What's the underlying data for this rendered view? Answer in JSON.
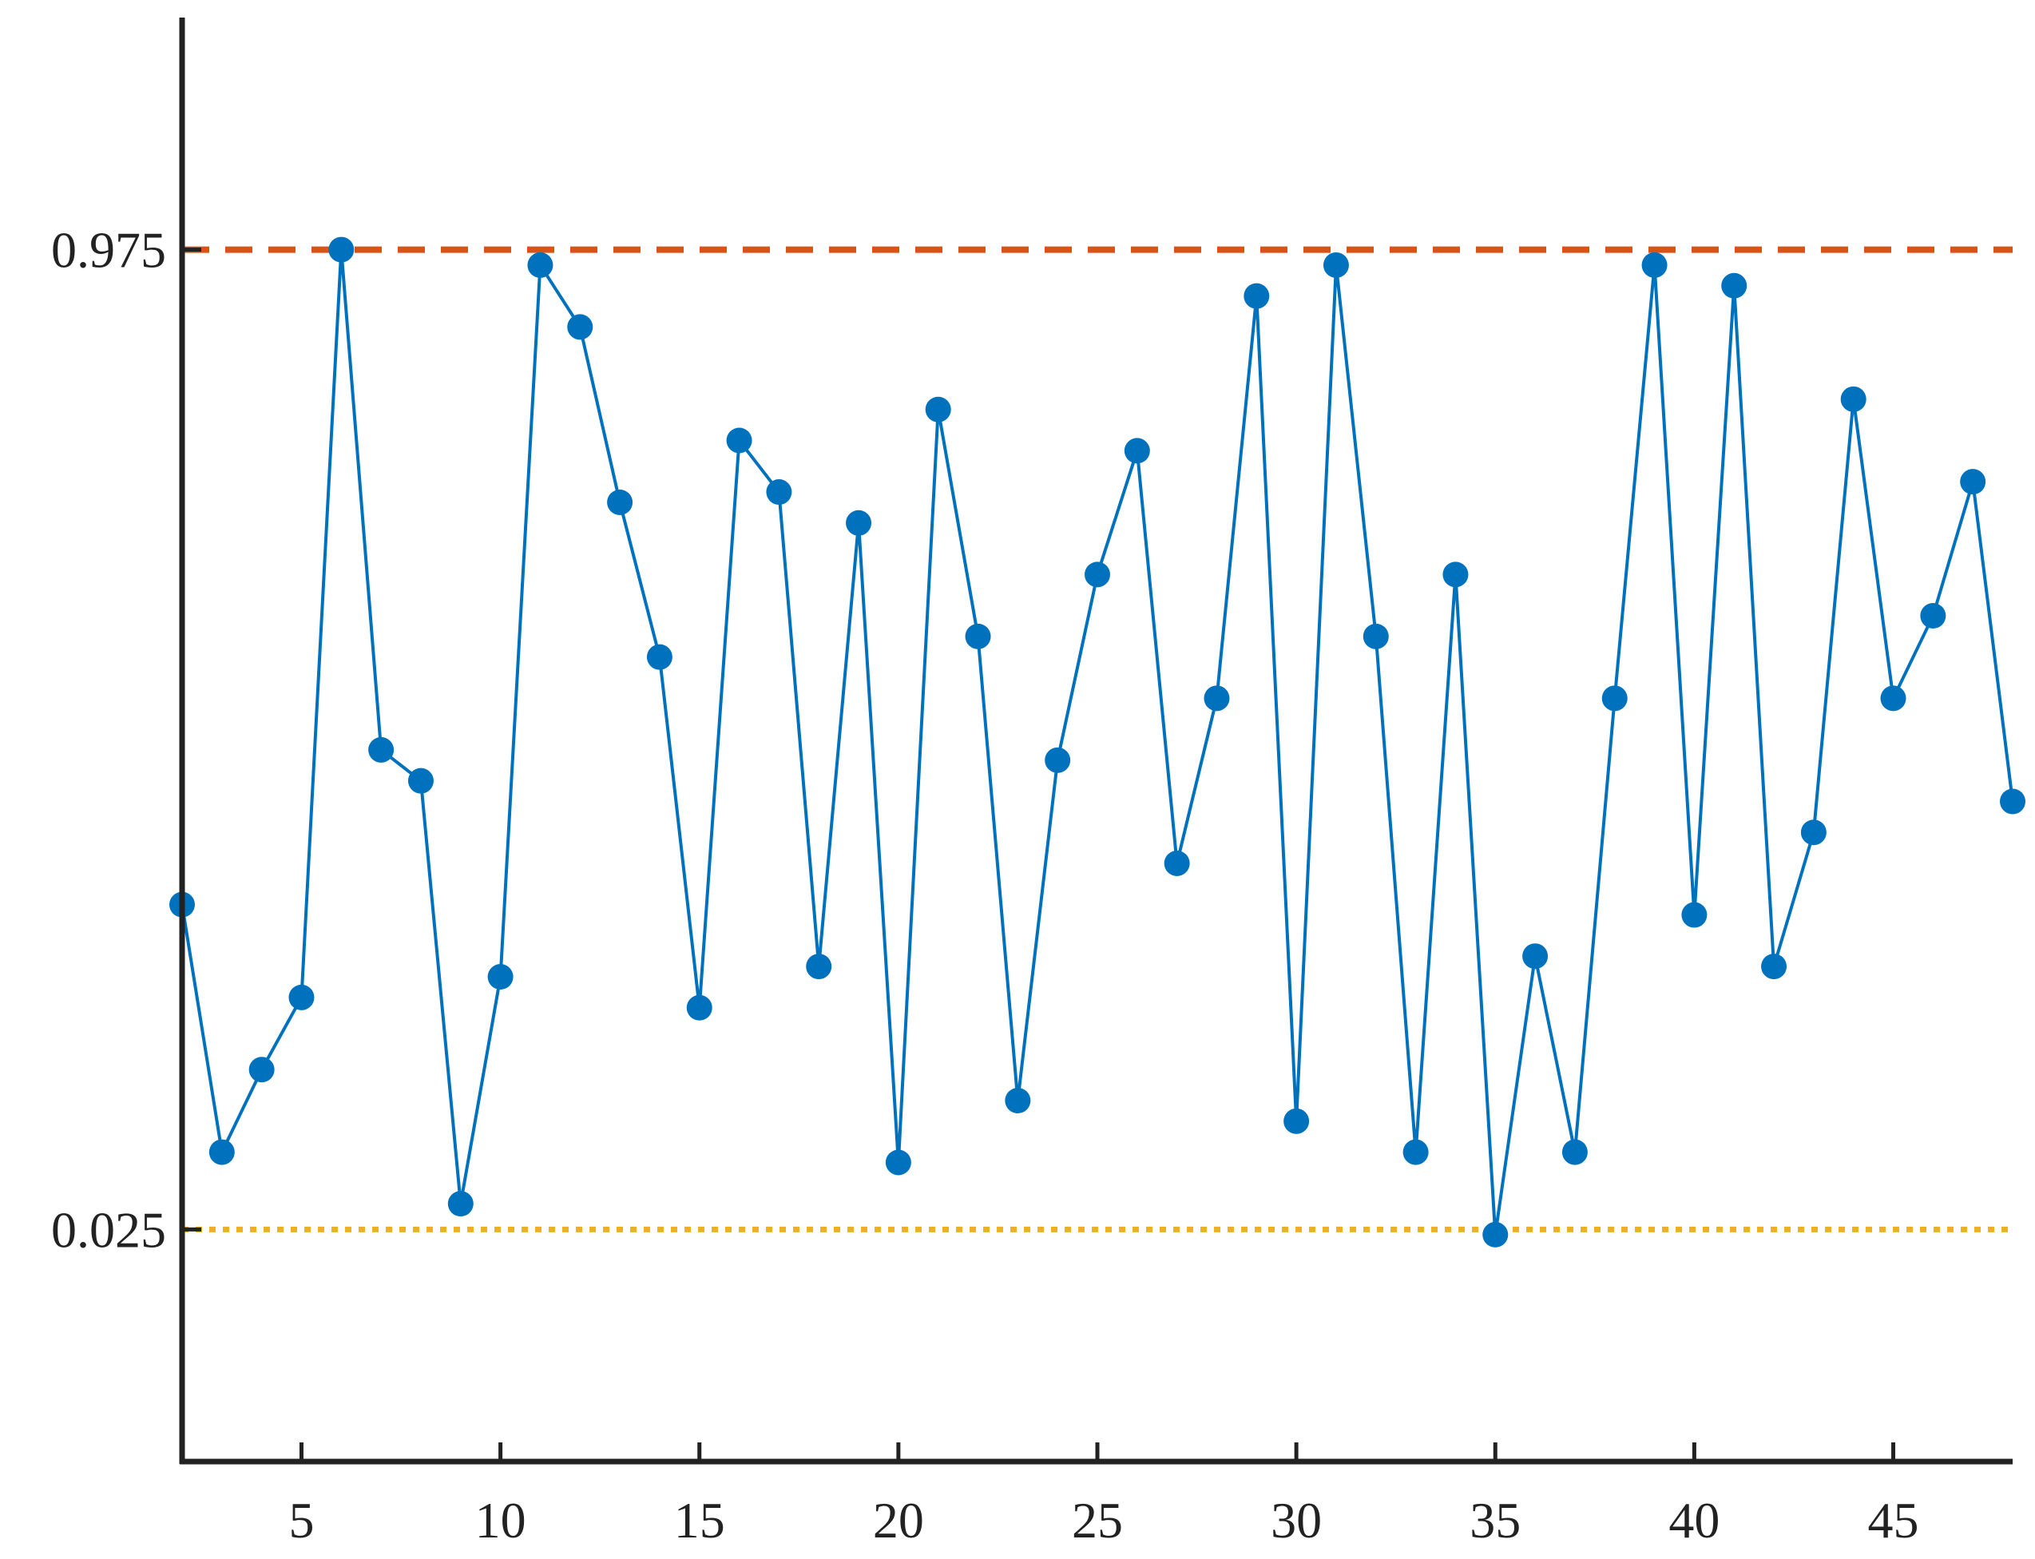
{
  "chart_data": {
    "type": "line",
    "title": "",
    "xlabel": "",
    "ylabel": "",
    "xlim": [
      2,
      48
    ],
    "ylim": [
      -0.2,
      1.2
    ],
    "x_ticks": [
      5,
      10,
      15,
      20,
      25,
      30,
      35,
      40,
      45
    ],
    "y_ticks": [
      0.025,
      0.975
    ],
    "x_tick_labels": [
      "5",
      "10",
      "15",
      "20",
      "25",
      "30",
      "35",
      "40",
      "45"
    ],
    "y_tick_labels": [
      "0.025",
      "0.975"
    ],
    "grid": false,
    "reference_lines": [
      {
        "y": 0.975,
        "style": "dashed",
        "color": "#D95319"
      },
      {
        "y": 0.025,
        "style": "dotted",
        "color": "#EDB120"
      }
    ],
    "series": [
      {
        "color": "#0072BD",
        "marker": "circle",
        "x": [
          2,
          3,
          4,
          5,
          6,
          7,
          8,
          9,
          10,
          11,
          12,
          13,
          14,
          15,
          16,
          17,
          18,
          19,
          20,
          21,
          22,
          23,
          24,
          25,
          26,
          27,
          28,
          29,
          30,
          31,
          32,
          33,
          34,
          35,
          36,
          37,
          38,
          39,
          40,
          41,
          42,
          43,
          44,
          45,
          46,
          47,
          48
        ],
        "y": [
          0.34,
          0.1,
          0.18,
          0.25,
          0.975,
          0.49,
          0.46,
          0.05,
          0.27,
          0.96,
          0.9,
          0.73,
          0.58,
          0.24,
          0.79,
          0.74,
          0.28,
          0.71,
          0.09,
          0.82,
          0.6,
          0.15,
          0.48,
          0.66,
          0.78,
          0.38,
          0.54,
          0.93,
          0.13,
          0.96,
          0.6,
          0.1,
          0.66,
          0.02,
          0.29,
          0.1,
          0.54,
          0.96,
          0.33,
          0.94,
          0.28,
          0.41,
          0.83,
          0.54,
          0.62,
          0.75,
          0.44
        ]
      }
    ]
  },
  "colors": {
    "axis": "#222222",
    "series": "#0072BD",
    "upper_line": "#D95319",
    "lower_line": "#EDB120",
    "background": "#ffffff"
  }
}
